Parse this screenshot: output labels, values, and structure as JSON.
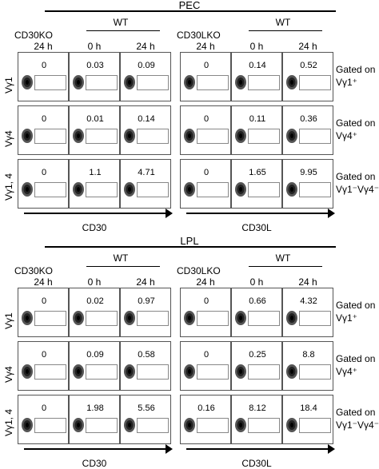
{
  "pec": {
    "title": "PEC",
    "left": {
      "ko_label": "CD30KO",
      "wt_label": "WT",
      "times": [
        "24 h",
        "0 h",
        "24 h"
      ],
      "axis": "CD30"
    },
    "right": {
      "ko_label": "CD30LKO",
      "wt_label": "WT",
      "times": [
        "24 h",
        "0 h",
        "24 h"
      ],
      "axis": "CD30L"
    },
    "rows": [
      {
        "label": "Vγ1",
        "gate_line1": "Gated on",
        "gate_line2": "Vγ1⁺",
        "left": [
          "0",
          "0.03",
          "0.09"
        ],
        "right": [
          "0",
          "0.14",
          "0.52"
        ]
      },
      {
        "label": "Vγ4",
        "gate_line1": "Gated on",
        "gate_line2": "Vγ4⁺",
        "left": [
          "0",
          "0.01",
          "0.14"
        ],
        "right": [
          "0",
          "0.11",
          "0.36"
        ]
      },
      {
        "label": "Vγ1, 4",
        "gate_line1": "Gated on",
        "gate_line2": "Vγ1⁻Vγ4⁻",
        "left": [
          "0",
          "1.1",
          "4.71"
        ],
        "right": [
          "0",
          "1.65",
          "9.95"
        ]
      }
    ]
  },
  "lpl": {
    "title": "LPL",
    "left": {
      "ko_label": "CD30KO",
      "wt_label": "WT",
      "times": [
        "24 h",
        "0 h",
        "24 h"
      ],
      "axis": "CD30"
    },
    "right": {
      "ko_label": "CD30LKO",
      "wt_label": "WT",
      "times": [
        "24 h",
        "0 h",
        "24 h"
      ],
      "axis": "CD30L"
    },
    "rows": [
      {
        "label": "Vγ1",
        "gate_line1": "Gated on",
        "gate_line2": "Vγ1⁺",
        "left": [
          "0",
          "0.02",
          "0.97"
        ],
        "right": [
          "0",
          "0.66",
          "4.32"
        ]
      },
      {
        "label": "Vγ4",
        "gate_line1": "Gated on",
        "gate_line2": "Vγ4⁺",
        "left": [
          "0",
          "0.09",
          "0.58"
        ],
        "right": [
          "0",
          "0.25",
          "8.8"
        ]
      },
      {
        "label": "Vγ1, 4",
        "gate_line1": "Gated on",
        "gate_line2": "Vγ1⁻Vγ4⁻",
        "left": [
          "0",
          "1.98",
          "5.56"
        ],
        "right": [
          "0.16",
          "8.12",
          "18.4"
        ]
      }
    ]
  }
}
